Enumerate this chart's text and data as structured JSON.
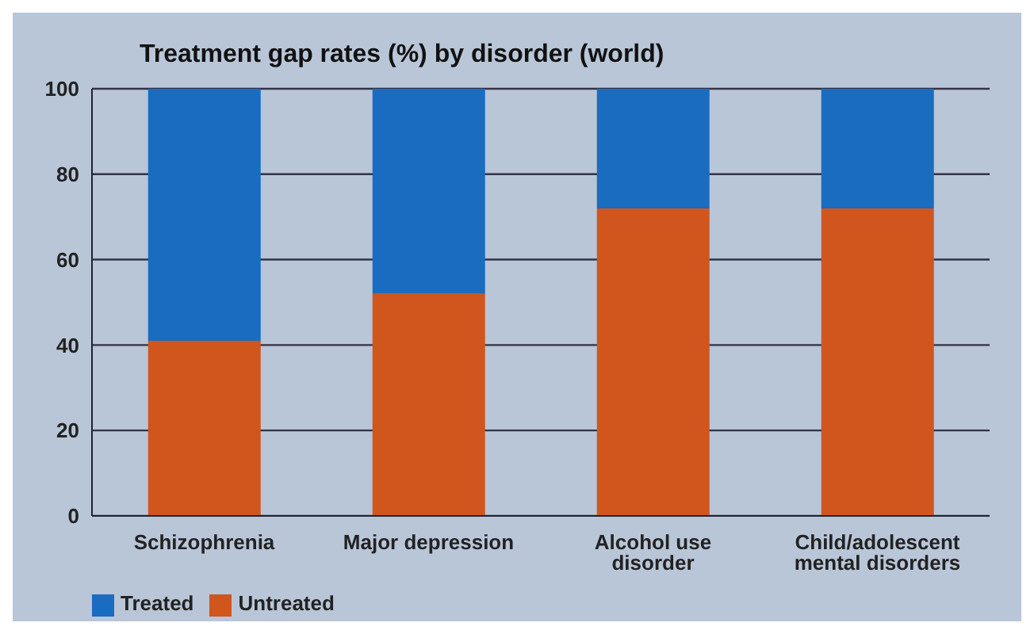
{
  "chart_data": {
    "type": "bar",
    "title": "Treatment gap rates (%) by disorder (world)",
    "categories": [
      "Schizophrenia",
      "Major depression",
      "Alcohol use disorder",
      "Child/adolescent mental disorders"
    ],
    "stacked": true,
    "series": [
      {
        "name": "Untreated",
        "color": "#d0561e",
        "values": [
          41,
          52,
          72,
          72
        ]
      },
      {
        "name": "Treated",
        "color": "#1a6cc0",
        "values": [
          59,
          48,
          28,
          28
        ]
      }
    ],
    "ylim": [
      0,
      100
    ],
    "yticks": [
      0,
      20,
      40,
      60,
      80,
      100
    ],
    "grid": "y",
    "legend": "bottom left"
  }
}
